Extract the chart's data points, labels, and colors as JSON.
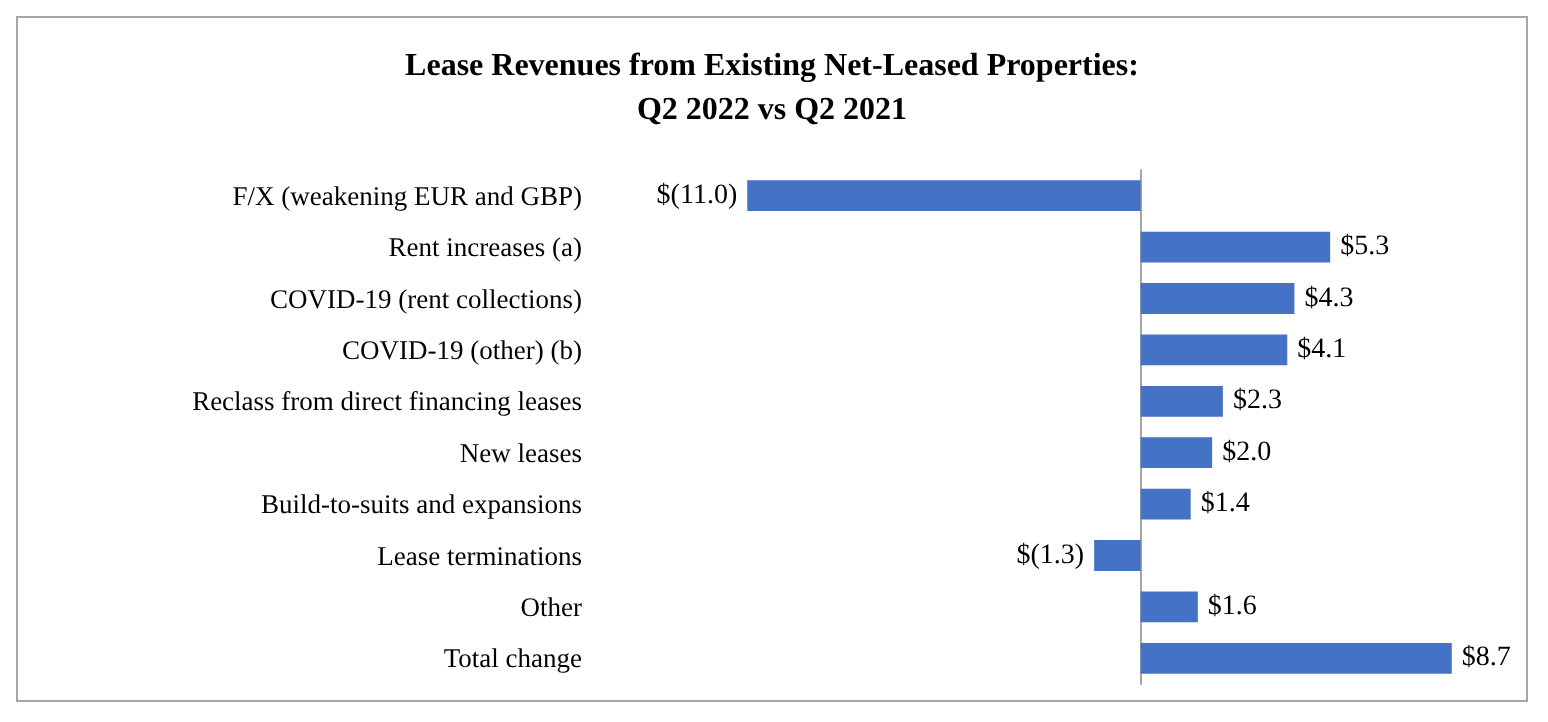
{
  "chart_data": {
    "type": "bar",
    "orientation": "horizontal",
    "title": "Lease Revenues from Existing Net-Leased Properties:\nQ2 2022 vs Q2 2021",
    "categories": [
      "F/X (weakening EUR and GBP)",
      "Rent increases (a)",
      "COVID-19 (rent collections)",
      "COVID-19 (other) (b)",
      "Reclass from direct financing leases",
      "New leases",
      "Build-to-suits and expansions",
      "Lease terminations",
      "Other",
      "Total change"
    ],
    "values": [
      -11.0,
      5.3,
      4.3,
      4.1,
      2.3,
      2.0,
      1.4,
      -1.3,
      1.6,
      8.7
    ],
    "value_labels": [
      "$(11.0)",
      "$5.3",
      "$4.3",
      "$4.1",
      "$2.3",
      "$2.0",
      "$1.4",
      "$(1.3)",
      "$1.6",
      "$8.7"
    ],
    "color": "#4472c4"
  }
}
